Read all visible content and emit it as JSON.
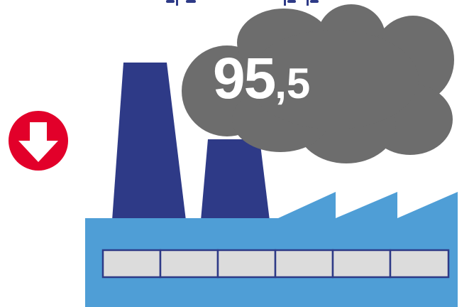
{
  "value": {
    "integer_part": "95",
    "separator": ",",
    "decimal_part": "5"
  },
  "trend": {
    "direction": "down",
    "icon": "down-arrow-icon"
  },
  "colors": {
    "chimney": "#2e3a87",
    "building": "#4f9ed6",
    "smoke": "#6d6d6d",
    "window_fill": "#dcdcdc",
    "window_stroke": "#2e3a87",
    "trend_badge": "#e2002a",
    "value_text": "#ffffff",
    "title_text": "#2e3a87"
  }
}
